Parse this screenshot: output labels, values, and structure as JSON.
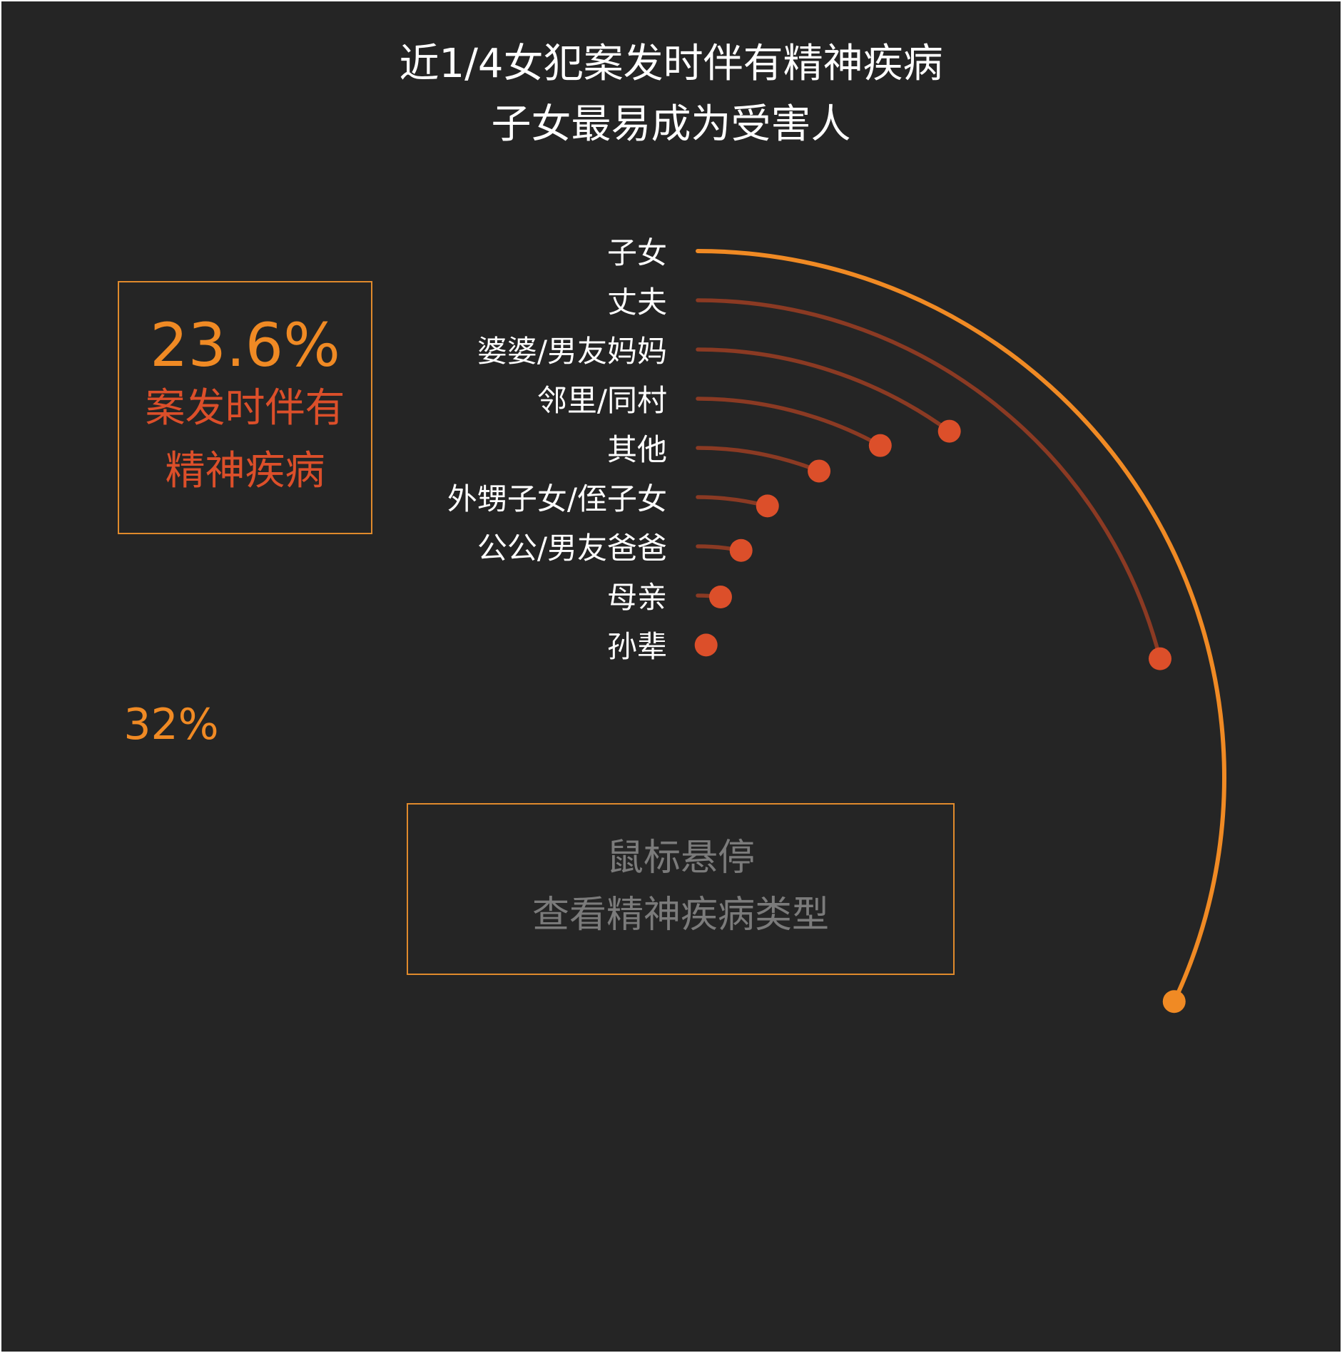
{
  "title": [
    "近1/4女犯案发时伴有精神疾病",
    "子女最易成为受害人"
  ],
  "stat_box": {
    "value": "23.6%",
    "label_line1": "案发时伴有",
    "label_line2": "精神疾病"
  },
  "hint_box": {
    "line1": "鼠标悬停",
    "line2": "查看精神疾病类型"
  },
  "chart_data": {
    "type": "radial-bar",
    "title": "近1/4女犯案发时伴有精神疾病 子女最易成为受害人",
    "unit": "%",
    "max_value": 100,
    "categories": [
      "子女",
      "丈夫",
      "婆婆/男友妈妈",
      "邻里/同村",
      "其他",
      "外甥子女/侄子女",
      "公公/男友爸爸",
      "母亲",
      "孙辈"
    ],
    "values": [
      32,
      21,
      10,
      8,
      6,
      4,
      3,
      2,
      1
    ],
    "value_labels": [
      "32%",
      "",
      "",
      "",
      "",
      "",
      "",
      "",
      ""
    ],
    "colors": {
      "highlight": "#f08a24",
      "series": "#8b3a23",
      "dot": "#dc4f2a",
      "label": "#ffffff"
    }
  }
}
